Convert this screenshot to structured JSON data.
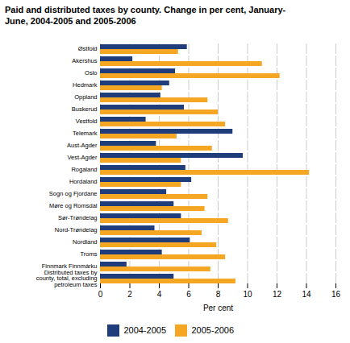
{
  "chart_data": {
    "type": "bar",
    "orientation": "horizontal",
    "title": "Paid and distributed taxes by county. Change in per cent, January-\nJune, 2004-2005 and 2005-2006",
    "categories": [
      "Østfold",
      "Akershus",
      "Oslo",
      "Hedmark",
      "Oppland",
      "Buskerud",
      "Vestfold",
      "Telemark",
      "Aust-Agder",
      "Vest-Agder",
      "Rogaland",
      "Hordaland",
      "Sogn og Fjordane",
      "Møre og Romsdal",
      "Sør-Trøndelag",
      "Nord-Trøndelag",
      "Nordland",
      "Troms",
      "Finnmark Finnmárku",
      "Distributed taxes by\ncounty, total, excluding\npetroleum taxes"
    ],
    "series": [
      {
        "name": "2004-2005",
        "color": "#1f3d7a",
        "values": [
          5.9,
          2.2,
          5.1,
          4.7,
          4.1,
          5.7,
          3.1,
          9.0,
          3.8,
          9.7,
          5.8,
          6.2,
          4.5,
          5.0,
          5.5,
          3.7,
          6.1,
          4.2,
          1.8,
          5.0
        ]
      },
      {
        "name": "2005-2006",
        "color": "#f5a623",
        "values": [
          5.3,
          11.0,
          12.2,
          4.2,
          7.3,
          8.0,
          8.5,
          5.2,
          7.6,
          5.5,
          14.2,
          5.5,
          7.3,
          7.1,
          8.7,
          6.9,
          7.9,
          8.5,
          7.5,
          9.2
        ]
      }
    ],
    "xlabel": "Per cent",
    "xlim": [
      0,
      16
    ],
    "xticks": [
      0,
      2,
      4,
      6,
      8,
      10,
      12,
      14,
      16
    ],
    "grid": true,
    "legend": "bottom"
  }
}
